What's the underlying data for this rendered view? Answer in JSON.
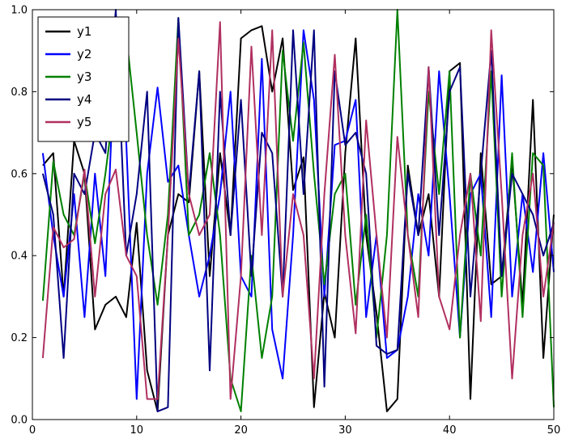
{
  "figure": {
    "background": "#ffffff",
    "frame_color": "#000000"
  },
  "chart_data": {
    "type": "line",
    "title": "",
    "xlabel": "",
    "ylabel": "",
    "grid": false,
    "xlim": [
      0,
      50
    ],
    "ylim": [
      0.0,
      1.0
    ],
    "xticks": [
      0,
      10,
      20,
      30,
      40,
      50
    ],
    "xtick_labels": [
      "0",
      "10",
      "20",
      "30",
      "40",
      "50"
    ],
    "yticks": [
      0.0,
      0.2,
      0.4,
      0.6,
      0.8,
      1.0
    ],
    "ytick_labels": [
      "0.0",
      "0.2",
      "0.4",
      "0.6",
      "0.8",
      "1.0"
    ],
    "line_width": 2,
    "legend": {
      "position": "upper-left",
      "border_color": "#000000",
      "background": "#ffffff"
    },
    "x": [
      1,
      2,
      3,
      4,
      5,
      6,
      7,
      8,
      9,
      10,
      11,
      12,
      13,
      14,
      15,
      16,
      17,
      18,
      19,
      20,
      21,
      22,
      23,
      24,
      25,
      26,
      27,
      28,
      29,
      30,
      31,
      32,
      33,
      34,
      35,
      36,
      37,
      38,
      39,
      40,
      41,
      42,
      43,
      44,
      45,
      46,
      47,
      48,
      49,
      50
    ],
    "series": [
      {
        "name": "y1",
        "color": "#000000",
        "values": [
          0.62,
          0.65,
          0.3,
          0.68,
          0.6,
          0.22,
          0.28,
          0.3,
          0.25,
          0.48,
          0.12,
          0.02,
          0.45,
          0.55,
          0.53,
          0.85,
          0.35,
          0.65,
          0.45,
          0.93,
          0.95,
          0.96,
          0.8,
          0.93,
          0.56,
          0.64,
          0.03,
          0.31,
          0.2,
          0.65,
          0.93,
          0.45,
          0.26,
          0.02,
          0.05,
          0.62,
          0.45,
          0.55,
          0.3,
          0.85,
          0.87,
          0.05,
          0.65,
          0.33,
          0.35,
          0.63,
          0.28,
          0.78,
          0.15,
          0.5
        ]
      },
      {
        "name": "y2",
        "color": "#0000ff",
        "values": [
          0.65,
          0.45,
          0.3,
          0.55,
          0.25,
          0.6,
          0.35,
          0.95,
          0.68,
          0.05,
          0.6,
          0.81,
          0.58,
          0.62,
          0.45,
          0.3,
          0.4,
          0.55,
          0.8,
          0.35,
          0.3,
          0.88,
          0.22,
          0.1,
          0.45,
          0.95,
          0.78,
          0.3,
          0.67,
          0.68,
          0.78,
          0.25,
          0.45,
          0.15,
          0.17,
          0.3,
          0.55,
          0.4,
          0.85,
          0.55,
          0.2,
          0.55,
          0.6,
          0.25,
          0.84,
          0.3,
          0.55,
          0.36,
          0.65,
          0.36
        ]
      },
      {
        "name": "y3",
        "color": "#008000",
        "values": [
          0.29,
          0.63,
          0.5,
          0.45,
          0.6,
          0.43,
          0.6,
          0.8,
          0.94,
          0.7,
          0.45,
          0.28,
          0.5,
          0.98,
          0.45,
          0.5,
          0.65,
          0.45,
          0.1,
          0.02,
          0.4,
          0.15,
          0.3,
          0.9,
          0.68,
          0.92,
          0.6,
          0.33,
          0.55,
          0.6,
          0.28,
          0.5,
          0.2,
          0.45,
          1.0,
          0.45,
          0.3,
          0.8,
          0.55,
          0.85,
          0.2,
          0.6,
          0.4,
          0.85,
          0.3,
          0.65,
          0.25,
          0.65,
          0.62,
          0.03
        ]
      },
      {
        "name": "y4",
        "color": "#000080",
        "values": [
          0.6,
          0.5,
          0.15,
          0.6,
          0.55,
          0.7,
          0.65,
          1.0,
          0.4,
          0.55,
          0.8,
          0.02,
          0.03,
          0.98,
          0.55,
          0.85,
          0.12,
          0.8,
          0.45,
          0.78,
          0.35,
          0.7,
          0.65,
          0.3,
          0.95,
          0.55,
          0.95,
          0.08,
          0.85,
          0.67,
          0.7,
          0.6,
          0.18,
          0.16,
          0.17,
          0.6,
          0.45,
          0.86,
          0.45,
          0.8,
          0.86,
          0.3,
          0.6,
          0.9,
          0.35,
          0.6,
          0.55,
          0.5,
          0.4,
          0.48
        ]
      },
      {
        "name": "y5",
        "color": "#b03060",
        "values": [
          0.15,
          0.47,
          0.42,
          0.44,
          0.61,
          0.3,
          0.55,
          0.61,
          0.4,
          0.35,
          0.05,
          0.05,
          0.45,
          0.93,
          0.55,
          0.45,
          0.5,
          0.97,
          0.05,
          0.35,
          0.91,
          0.45,
          0.95,
          0.3,
          0.55,
          0.45,
          0.1,
          0.55,
          0.89,
          0.45,
          0.21,
          0.73,
          0.45,
          0.2,
          0.69,
          0.45,
          0.25,
          0.86,
          0.3,
          0.22,
          0.45,
          0.6,
          0.24,
          0.95,
          0.55,
          0.1,
          0.45,
          0.6,
          0.3,
          0.48
        ]
      }
    ]
  }
}
